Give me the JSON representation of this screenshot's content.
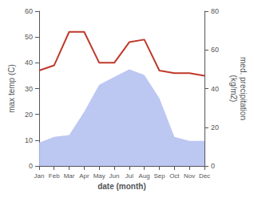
{
  "chart_data": {
    "type": "line",
    "xlabel": "date (month)",
    "ylabel": "max temp (C)",
    "y2label": "med. precipitation\n(kg/m2)",
    "categories": [
      "Jan",
      "Feb",
      "Mar",
      "Apr",
      "May",
      "Jun",
      "Jul",
      "Aug",
      "Sep",
      "Oct",
      "Nov",
      "Dec"
    ],
    "series": [
      {
        "type": "area",
        "color": "#b0bdf0",
        "axis": "y2",
        "values": [
          12,
          15,
          16,
          28,
          42,
          46,
          50,
          47,
          35,
          15,
          13,
          13
        ]
      },
      {
        "type": "line",
        "color": "#c0392b",
        "values": [
          37,
          39,
          52,
          52,
          40,
          40,
          48,
          49,
          37,
          36,
          36,
          35
        ]
      }
    ],
    "ylim": [
      0,
      60
    ],
    "yticks": [
      0,
      10,
      20,
      30,
      40,
      50,
      60
    ],
    "y2lim": [
      0,
      80
    ],
    "y2ticks": [
      0,
      20,
      40,
      60,
      80
    ],
    "grid": false
  }
}
